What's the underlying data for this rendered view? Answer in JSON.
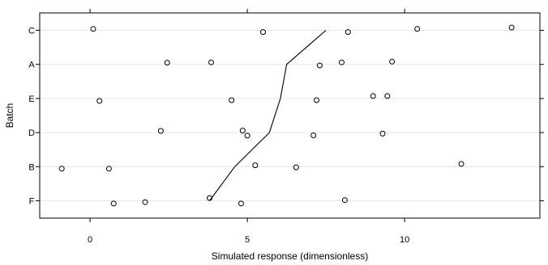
{
  "chart_data": {
    "type": "scatter",
    "title": "",
    "xlabel": "Simulated response (dimensionless)",
    "ylabel": "Batch",
    "xlim": [
      -1.6,
      14.3
    ],
    "x_ticks": [
      0,
      5,
      10
    ],
    "categories": [
      "F",
      "B",
      "D",
      "E",
      "A",
      "C"
    ],
    "grid": "horizontal",
    "points": [
      {
        "batch": "C",
        "x": 0.1,
        "jitter": 0.04
      },
      {
        "batch": "C",
        "x": 5.5,
        "jitter": -0.05
      },
      {
        "batch": "C",
        "x": 8.2,
        "jitter": -0.05
      },
      {
        "batch": "C",
        "x": 10.4,
        "jitter": 0.04
      },
      {
        "batch": "C",
        "x": 13.4,
        "jitter": 0.08
      },
      {
        "batch": "A",
        "x": 2.45,
        "jitter": 0.05
      },
      {
        "batch": "A",
        "x": 3.85,
        "jitter": 0.06
      },
      {
        "batch": "A",
        "x": 7.3,
        "jitter": -0.03
      },
      {
        "batch": "A",
        "x": 8.0,
        "jitter": 0.06
      },
      {
        "batch": "A",
        "x": 9.6,
        "jitter": 0.08
      },
      {
        "batch": "E",
        "x": 0.3,
        "jitter": -0.07
      },
      {
        "batch": "E",
        "x": 4.5,
        "jitter": -0.05
      },
      {
        "batch": "E",
        "x": 7.2,
        "jitter": -0.05
      },
      {
        "batch": "E",
        "x": 9.0,
        "jitter": 0.07
      },
      {
        "batch": "E",
        "x": 9.45,
        "jitter": 0.07
      },
      {
        "batch": "D",
        "x": 2.25,
        "jitter": 0.05
      },
      {
        "batch": "D",
        "x": 4.85,
        "jitter": 0.06
      },
      {
        "batch": "D",
        "x": 5.0,
        "jitter": -0.09
      },
      {
        "batch": "D",
        "x": 7.1,
        "jitter": -0.08
      },
      {
        "batch": "D",
        "x": 9.3,
        "jitter": -0.03
      },
      {
        "batch": "B",
        "x": -0.9,
        "jitter": -0.06
      },
      {
        "batch": "B",
        "x": 0.6,
        "jitter": -0.06
      },
      {
        "batch": "B",
        "x": 5.25,
        "jitter": 0.04
      },
      {
        "batch": "B",
        "x": 6.55,
        "jitter": -0.02
      },
      {
        "batch": "B",
        "x": 11.8,
        "jitter": 0.08
      },
      {
        "batch": "F",
        "x": 0.75,
        "jitter": -0.08
      },
      {
        "batch": "F",
        "x": 1.75,
        "jitter": -0.04
      },
      {
        "batch": "F",
        "x": 3.8,
        "jitter": 0.08
      },
      {
        "batch": "F",
        "x": 4.8,
        "jitter": -0.08
      },
      {
        "batch": "F",
        "x": 8.1,
        "jitter": 0.02
      }
    ],
    "mean_line": [
      {
        "batch": "F",
        "x": 3.8
      },
      {
        "batch": "B",
        "x": 4.6
      },
      {
        "batch": "D",
        "x": 5.7
      },
      {
        "batch": "E",
        "x": 6.05
      },
      {
        "batch": "A",
        "x": 6.25
      },
      {
        "batch": "C",
        "x": 7.5
      }
    ]
  }
}
